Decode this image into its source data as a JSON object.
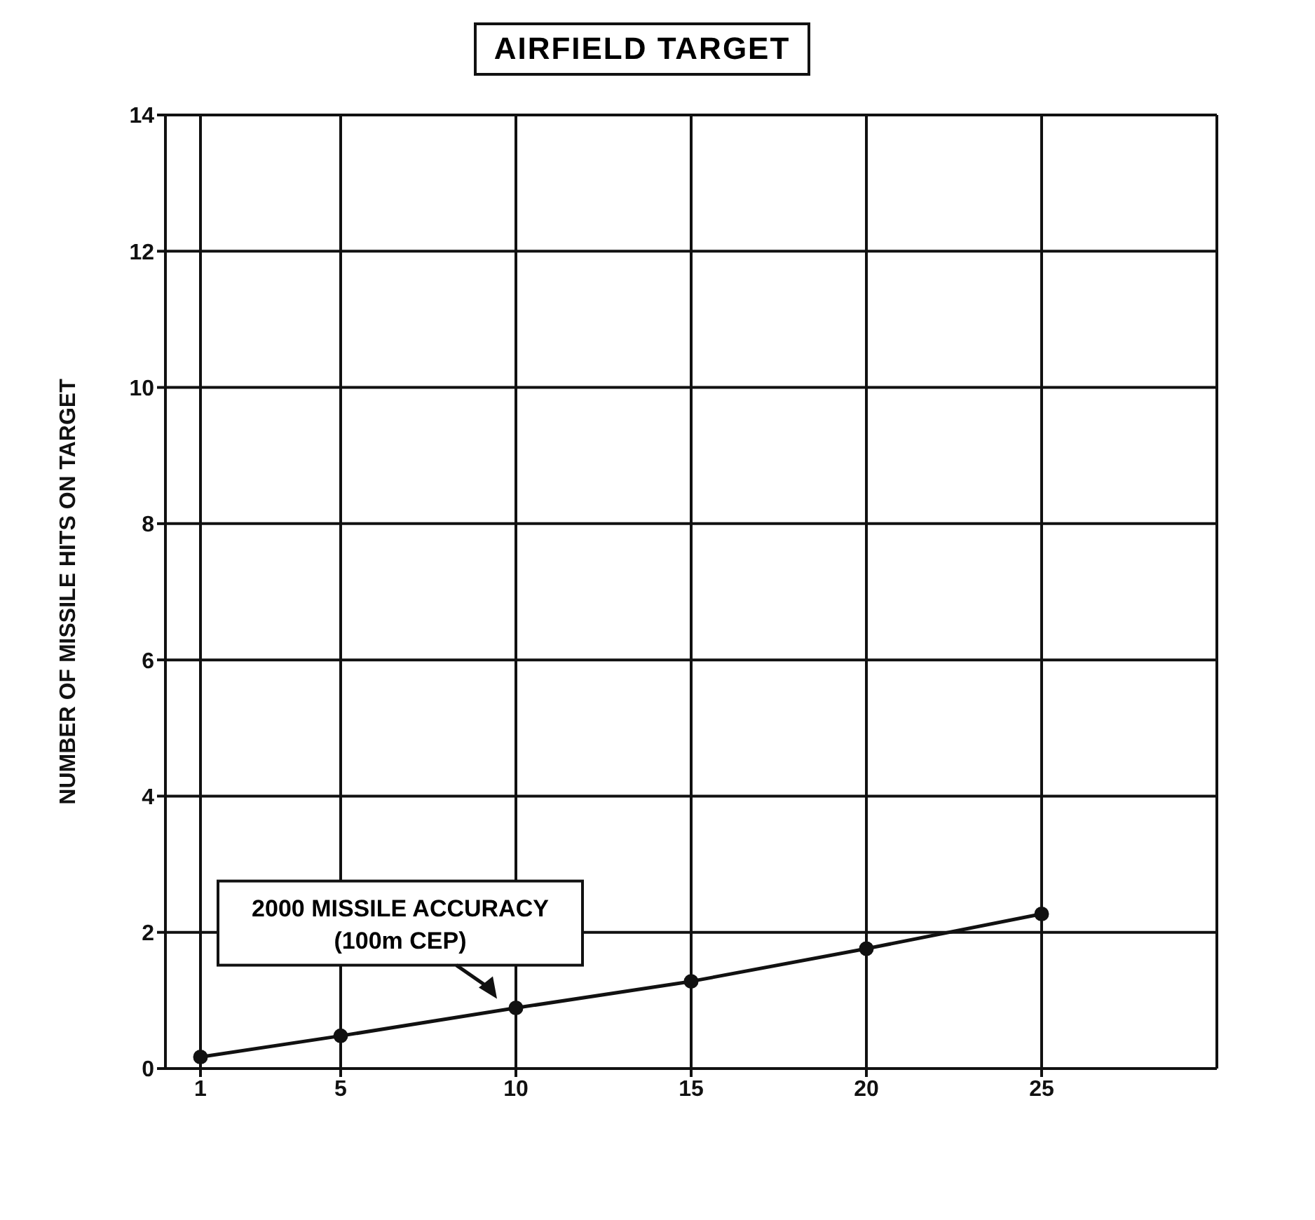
{
  "chart_data": {
    "type": "line",
    "title": "AIRFIELD TARGET",
    "ylabel": "NUMBER OF MISSILE HITS ON TARGET",
    "x": [
      1,
      5,
      10,
      15,
      20,
      25
    ],
    "series": [
      {
        "color": "#111111",
        "values": [
          0.17,
          0.48,
          0.89,
          1.28,
          1.76,
          2.27
        ]
      }
    ],
    "xlim": [
      0,
      30
    ],
    "xticks": [
      1,
      5,
      10,
      15,
      20,
      25
    ],
    "ylim": [
      0,
      14
    ],
    "yticks": [
      0,
      2,
      4,
      6,
      8,
      10,
      12,
      14
    ],
    "grid": true,
    "marker": "circle",
    "line_style": "solid",
    "annotations": [
      {
        "text": "2000 MISSILE ACCURACY (100m CEP)",
        "x": 9.5,
        "y": 0.9
      }
    ]
  }
}
